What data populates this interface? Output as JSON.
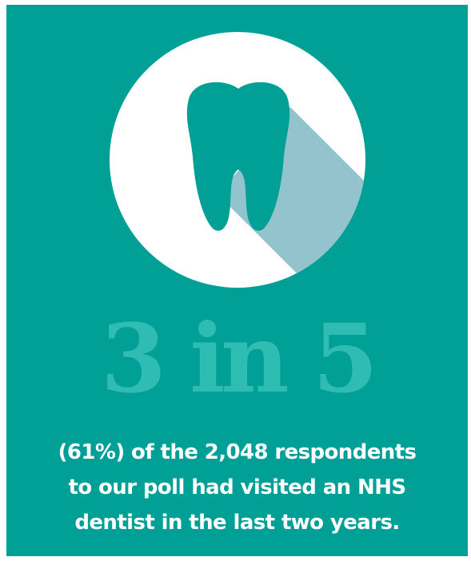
{
  "stat": "3 in 5",
  "caption": {
    "line1": "(61%) of the 2,048 respondents",
    "line2": "to our poll had visited an NHS",
    "line3": "dentist in the last two years."
  },
  "icon": "tooth-icon",
  "colors": {
    "background": "#00a097",
    "stat_text": "#2ebcb3",
    "circle": "#ffffff",
    "shadow": "#93c4cd",
    "caption_text": "#ffffff"
  }
}
